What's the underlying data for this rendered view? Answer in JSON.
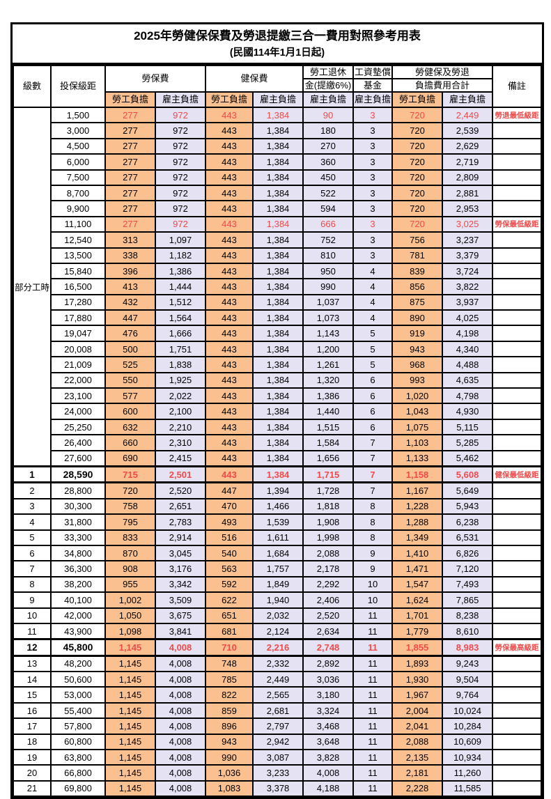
{
  "title": "2025年勞健保保費及勞退提繳三合一費用對照參考用表",
  "subtitle": "(民國114年1月1日起)",
  "colors": {
    "employee_bg": "#FAC090",
    "employer_bg": "#E4E2F3",
    "highlight_text": "#F04A4A"
  },
  "header": {
    "level": "級數",
    "bracket": "投保級距",
    "labor_ins": "勞保費",
    "health_ins": "健保費",
    "pension_line1": "勞工退休",
    "pension_line2": "金(提繳6%)",
    "wage_fund_line1": "工資墊償",
    "wage_fund_line2": "基金",
    "total_line1": "勞健保及勞退",
    "total_line2": "負擔費用合計",
    "remark": "備註",
    "employee": "勞工負擔",
    "employer": "雇主負擔"
  },
  "table": {
    "part_time_label": "部分工時",
    "part_time_rowspan": 23,
    "rows": [
      {
        "level": "",
        "bracket": "1,500",
        "values": [
          "277",
          "972",
          "443",
          "1,384",
          "90",
          "3",
          "720",
          "2,449"
        ],
        "remark": "勞退最低級距",
        "style": "red"
      },
      {
        "level": "",
        "bracket": "3,000",
        "values": [
          "277",
          "972",
          "443",
          "1,384",
          "180",
          "3",
          "720",
          "2,539"
        ],
        "remark": "",
        "style": ""
      },
      {
        "level": "",
        "bracket": "4,500",
        "values": [
          "277",
          "972",
          "443",
          "1,384",
          "270",
          "3",
          "720",
          "2,629"
        ],
        "remark": "",
        "style": ""
      },
      {
        "level": "",
        "bracket": "6,000",
        "values": [
          "277",
          "972",
          "443",
          "1,384",
          "360",
          "3",
          "720",
          "2,719"
        ],
        "remark": "",
        "style": ""
      },
      {
        "level": "",
        "bracket": "7,500",
        "values": [
          "277",
          "972",
          "443",
          "1,384",
          "450",
          "3",
          "720",
          "2,809"
        ],
        "remark": "",
        "style": ""
      },
      {
        "level": "",
        "bracket": "8,700",
        "values": [
          "277",
          "972",
          "443",
          "1,384",
          "522",
          "3",
          "720",
          "2,881"
        ],
        "remark": "",
        "style": ""
      },
      {
        "level": "",
        "bracket": "9,900",
        "values": [
          "277",
          "972",
          "443",
          "1,384",
          "594",
          "3",
          "720",
          "2,953"
        ],
        "remark": "",
        "style": ""
      },
      {
        "level": "",
        "bracket": "11,100",
        "values": [
          "277",
          "972",
          "443",
          "1,384",
          "666",
          "3",
          "720",
          "3,025"
        ],
        "remark": "勞保最低級距",
        "style": "red"
      },
      {
        "level": "",
        "bracket": "12,540",
        "values": [
          "313",
          "1,097",
          "443",
          "1,384",
          "752",
          "3",
          "756",
          "3,237"
        ],
        "remark": "",
        "style": ""
      },
      {
        "level": "",
        "bracket": "13,500",
        "values": [
          "338",
          "1,182",
          "443",
          "1,384",
          "810",
          "3",
          "781",
          "3,379"
        ],
        "remark": "",
        "style": ""
      },
      {
        "level": "",
        "bracket": "15,840",
        "values": [
          "396",
          "1,386",
          "443",
          "1,384",
          "950",
          "4",
          "839",
          "3,724"
        ],
        "remark": "",
        "style": ""
      },
      {
        "level": "",
        "bracket": "16,500",
        "values": [
          "413",
          "1,444",
          "443",
          "1,384",
          "990",
          "4",
          "856",
          "3,822"
        ],
        "remark": "",
        "style": ""
      },
      {
        "level": "",
        "bracket": "17,280",
        "values": [
          "432",
          "1,512",
          "443",
          "1,384",
          "1,037",
          "4",
          "875",
          "3,937"
        ],
        "remark": "",
        "style": ""
      },
      {
        "level": "",
        "bracket": "17,880",
        "values": [
          "447",
          "1,564",
          "443",
          "1,384",
          "1,073",
          "4",
          "890",
          "4,025"
        ],
        "remark": "",
        "style": ""
      },
      {
        "level": "",
        "bracket": "19,047",
        "values": [
          "476",
          "1,666",
          "443",
          "1,384",
          "1,143",
          "5",
          "919",
          "4,198"
        ],
        "remark": "",
        "style": ""
      },
      {
        "level": "",
        "bracket": "20,008",
        "values": [
          "500",
          "1,751",
          "443",
          "1,384",
          "1,200",
          "5",
          "943",
          "4,340"
        ],
        "remark": "",
        "style": ""
      },
      {
        "level": "",
        "bracket": "21,009",
        "values": [
          "525",
          "1,838",
          "443",
          "1,384",
          "1,261",
          "5",
          "968",
          "4,488"
        ],
        "remark": "",
        "style": ""
      },
      {
        "level": "",
        "bracket": "22,000",
        "values": [
          "550",
          "1,925",
          "443",
          "1,384",
          "1,320",
          "6",
          "993",
          "4,635"
        ],
        "remark": "",
        "style": ""
      },
      {
        "level": "",
        "bracket": "23,100",
        "values": [
          "577",
          "2,022",
          "443",
          "1,384",
          "1,386",
          "6",
          "1,020",
          "4,798"
        ],
        "remark": "",
        "style": ""
      },
      {
        "level": "",
        "bracket": "24,000",
        "values": [
          "600",
          "2,100",
          "443",
          "1,384",
          "1,440",
          "6",
          "1,043",
          "4,930"
        ],
        "remark": "",
        "style": ""
      },
      {
        "level": "",
        "bracket": "25,250",
        "values": [
          "632",
          "2,210",
          "443",
          "1,384",
          "1,515",
          "6",
          "1,075",
          "5,115"
        ],
        "remark": "",
        "style": ""
      },
      {
        "level": "",
        "bracket": "26,400",
        "values": [
          "660",
          "2,310",
          "443",
          "1,384",
          "1,584",
          "7",
          "1,103",
          "5,285"
        ],
        "remark": "",
        "style": ""
      },
      {
        "level": "",
        "bracket": "27,600",
        "values": [
          "690",
          "2,415",
          "443",
          "1,384",
          "1,656",
          "7",
          "1,133",
          "5,462"
        ],
        "remark": "",
        "style": ""
      },
      {
        "level": "1",
        "bracket": "28,590",
        "values": [
          "715",
          "2,501",
          "443",
          "1,384",
          "1,715",
          "7",
          "1,158",
          "5,608"
        ],
        "remark": "健保最低級距",
        "style": "red bold"
      },
      {
        "level": "2",
        "bracket": "28,800",
        "values": [
          "720",
          "2,520",
          "447",
          "1,394",
          "1,728",
          "7",
          "1,167",
          "5,649"
        ],
        "remark": "",
        "style": ""
      },
      {
        "level": "3",
        "bracket": "30,300",
        "values": [
          "758",
          "2,651",
          "470",
          "1,466",
          "1,818",
          "8",
          "1,228",
          "5,943"
        ],
        "remark": "",
        "style": ""
      },
      {
        "level": "4",
        "bracket": "31,800",
        "values": [
          "795",
          "2,783",
          "493",
          "1,539",
          "1,908",
          "8",
          "1,288",
          "6,238"
        ],
        "remark": "",
        "style": ""
      },
      {
        "level": "5",
        "bracket": "33,300",
        "values": [
          "833",
          "2,914",
          "516",
          "1,611",
          "1,998",
          "8",
          "1,349",
          "6,531"
        ],
        "remark": "",
        "style": ""
      },
      {
        "level": "6",
        "bracket": "34,800",
        "values": [
          "870",
          "3,045",
          "540",
          "1,684",
          "2,088",
          "9",
          "1,410",
          "6,826"
        ],
        "remark": "",
        "style": ""
      },
      {
        "level": "7",
        "bracket": "36,300",
        "values": [
          "908",
          "3,176",
          "563",
          "1,757",
          "2,178",
          "9",
          "1,471",
          "7,120"
        ],
        "remark": "",
        "style": ""
      },
      {
        "level": "8",
        "bracket": "38,200",
        "values": [
          "955",
          "3,342",
          "592",
          "1,849",
          "2,292",
          "10",
          "1,547",
          "7,493"
        ],
        "remark": "",
        "style": ""
      },
      {
        "level": "9",
        "bracket": "40,100",
        "values": [
          "1,002",
          "3,509",
          "622",
          "1,940",
          "2,406",
          "10",
          "1,624",
          "7,865"
        ],
        "remark": "",
        "style": ""
      },
      {
        "level": "10",
        "bracket": "42,000",
        "values": [
          "1,050",
          "3,675",
          "651",
          "2,032",
          "2,520",
          "11",
          "1,701",
          "8,238"
        ],
        "remark": "",
        "style": ""
      },
      {
        "level": "11",
        "bracket": "43,900",
        "values": [
          "1,098",
          "3,841",
          "681",
          "2,124",
          "2,634",
          "11",
          "1,779",
          "8,610"
        ],
        "remark": "",
        "style": ""
      },
      {
        "level": "12",
        "bracket": "45,800",
        "values": [
          "1,145",
          "4,008",
          "710",
          "2,216",
          "2,748",
          "11",
          "1,855",
          "8,983"
        ],
        "remark": "勞保最高級距",
        "style": "red bold"
      },
      {
        "level": "13",
        "bracket": "48,200",
        "values": [
          "1,145",
          "4,008",
          "748",
          "2,332",
          "2,892",
          "11",
          "1,893",
          "9,243"
        ],
        "remark": "",
        "style": ""
      },
      {
        "level": "14",
        "bracket": "50,600",
        "values": [
          "1,145",
          "4,008",
          "785",
          "2,449",
          "3,036",
          "11",
          "1,930",
          "9,504"
        ],
        "remark": "",
        "style": ""
      },
      {
        "level": "15",
        "bracket": "53,000",
        "values": [
          "1,145",
          "4,008",
          "822",
          "2,565",
          "3,180",
          "11",
          "1,967",
          "9,764"
        ],
        "remark": "",
        "style": ""
      },
      {
        "level": "16",
        "bracket": "55,400",
        "values": [
          "1,145",
          "4,008",
          "859",
          "2,681",
          "3,324",
          "11",
          "2,004",
          "10,024"
        ],
        "remark": "",
        "style": ""
      },
      {
        "level": "17",
        "bracket": "57,800",
        "values": [
          "1,145",
          "4,008",
          "896",
          "2,797",
          "3,468",
          "11",
          "2,041",
          "10,284"
        ],
        "remark": "",
        "style": ""
      },
      {
        "level": "18",
        "bracket": "60,800",
        "values": [
          "1,145",
          "4,008",
          "943",
          "2,942",
          "3,648",
          "11",
          "2,088",
          "10,609"
        ],
        "remark": "",
        "style": ""
      },
      {
        "level": "19",
        "bracket": "63,800",
        "values": [
          "1,145",
          "4,008",
          "990",
          "3,087",
          "3,828",
          "11",
          "2,135",
          "10,934"
        ],
        "remark": "",
        "style": ""
      },
      {
        "level": "20",
        "bracket": "66,800",
        "values": [
          "1,145",
          "4,008",
          "1,036",
          "3,233",
          "4,008",
          "11",
          "2,181",
          "11,260"
        ],
        "remark": "",
        "style": ""
      },
      {
        "level": "21",
        "bracket": "69,800",
        "values": [
          "1,145",
          "4,008",
          "1,083",
          "3,378",
          "4,188",
          "11",
          "2,228",
          "11,585"
        ],
        "remark": "",
        "style": ""
      }
    ]
  }
}
